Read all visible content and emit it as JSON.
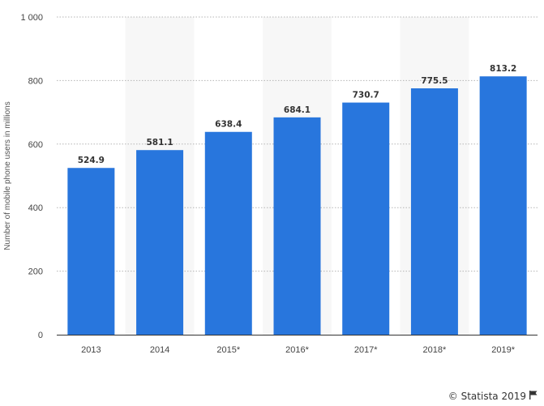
{
  "chart_data": {
    "type": "bar",
    "categories": [
      "2013",
      "2014",
      "2015*",
      "2016*",
      "2017*",
      "2018*",
      "2019*"
    ],
    "values": [
      524.9,
      581.1,
      638.4,
      684.1,
      730.7,
      775.5,
      813.2
    ],
    "value_labels": [
      "524.9",
      "581.1",
      "638.4",
      "684.1",
      "730.7",
      "775.5",
      "813.2"
    ],
    "ylabel": "Number of mobile phone users in millions",
    "ylim": [
      0,
      1000
    ],
    "yticks": [
      0,
      200,
      400,
      600,
      800,
      1000
    ],
    "ytick_labels": [
      "0",
      "200",
      "400",
      "600",
      "800",
      "1 000"
    ],
    "grid": true,
    "bar_color": "#2876dd",
    "band_color": "#f7f7f7"
  },
  "footer": {
    "credit": "© Statista 2019",
    "icon": "flag-icon"
  }
}
